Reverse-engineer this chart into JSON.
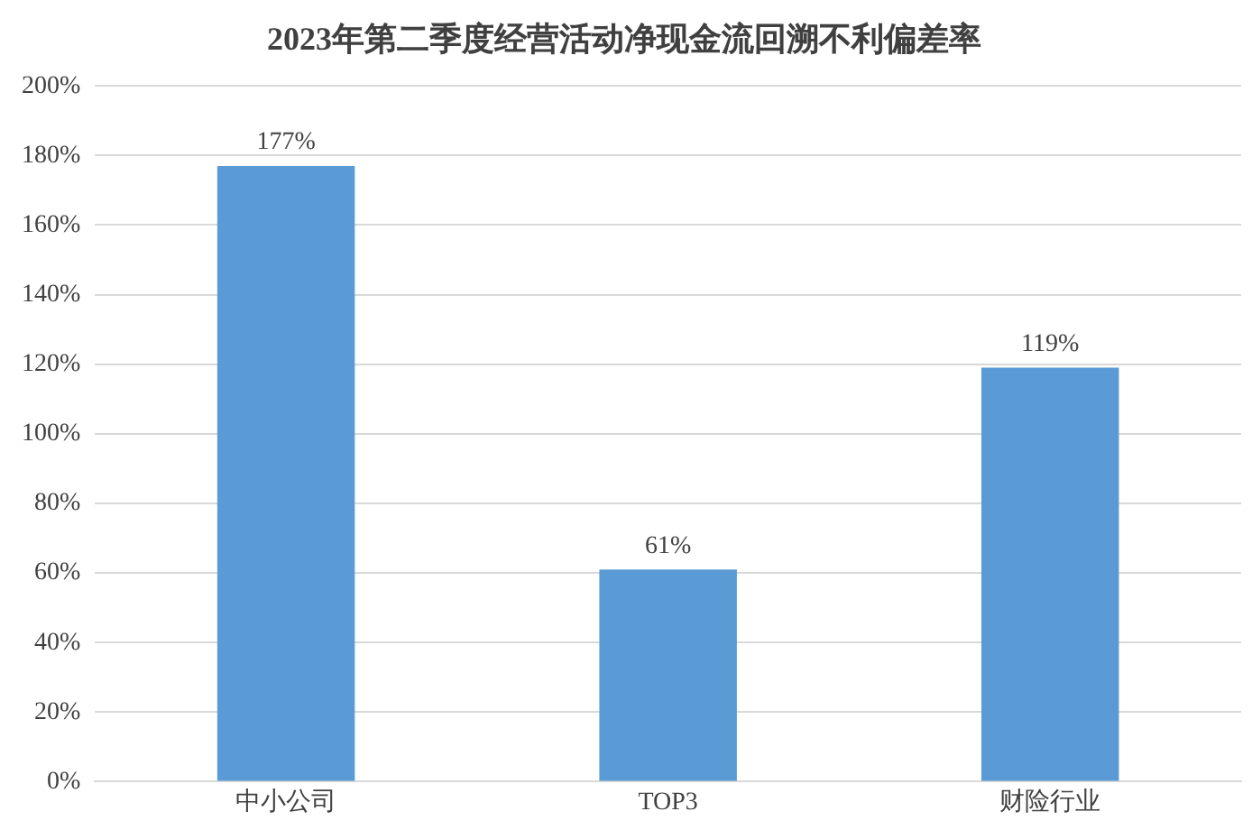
{
  "chart_data": {
    "type": "bar",
    "title": "2023年第二季度经营活动净现金流回溯不利偏差率",
    "categories": [
      "中小公司",
      "TOP3",
      "财险行业"
    ],
    "values": [
      177,
      61,
      119
    ],
    "value_labels": [
      "177%",
      "61%",
      "119%"
    ],
    "color": "#5b9bd5",
    "ylim": [
      0,
      200
    ],
    "yticks": [
      {
        "value": 0,
        "label": "0%"
      },
      {
        "value": 20,
        "label": "20%"
      },
      {
        "value": 40,
        "label": "40%"
      },
      {
        "value": 60,
        "label": "60%"
      },
      {
        "value": 80,
        "label": "80%"
      },
      {
        "value": 100,
        "label": "100%"
      },
      {
        "value": 120,
        "label": "120%"
      },
      {
        "value": 140,
        "label": "140%"
      },
      {
        "value": 160,
        "label": "160%"
      },
      {
        "value": 180,
        "label": "180%"
      },
      {
        "value": 200,
        "label": "200%"
      }
    ],
    "grid": "y",
    "legend": false
  }
}
